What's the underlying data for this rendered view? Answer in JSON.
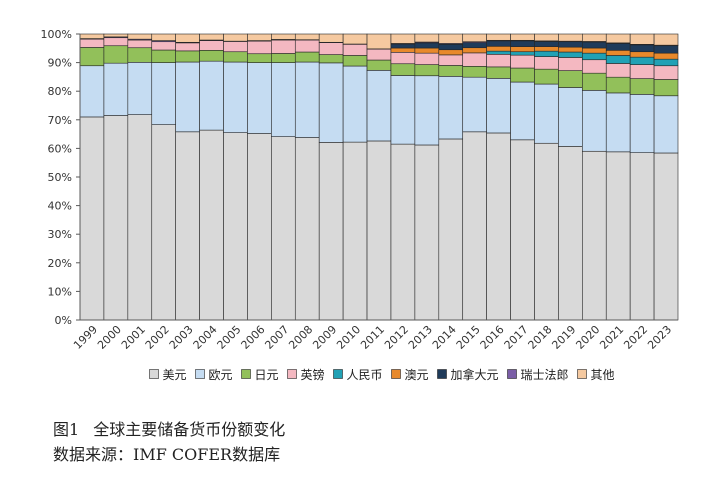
{
  "chart_data": {
    "type": "bar",
    "stacked": true,
    "normalized": true,
    "categories": [
      "1999",
      "2000",
      "2001",
      "2002",
      "2003",
      "2004",
      "2005",
      "2006",
      "2007",
      "2008",
      "2009",
      "2010",
      "2011",
      "2012",
      "2013",
      "2014",
      "2015",
      "2016",
      "2017",
      "2018",
      "2019",
      "2020",
      "2021",
      "2022",
      "2023"
    ],
    "ylim": [
      0,
      100
    ],
    "yticks": [
      "0%",
      "10%",
      "20%",
      "30%",
      "40%",
      "50%",
      "60%",
      "70%",
      "80%",
      "90%",
      "100%"
    ],
    "grid": false,
    "legend_position": "bottom",
    "series": [
      {
        "name": "美元",
        "color": "#d9d9d9",
        "values": [
          71.0,
          71.5,
          71.8,
          68.3,
          65.8,
          66.4,
          65.5,
          65.2,
          64.1,
          63.8,
          62.1,
          62.2,
          62.6,
          61.5,
          61.2,
          63.3,
          65.8,
          65.4,
          63.0,
          61.8,
          60.7,
          59.0,
          58.8,
          58.5,
          58.4
        ]
      },
      {
        "name": "欧元",
        "color": "#c5dcf2",
        "values": [
          17.9,
          18.3,
          18.3,
          21.7,
          24.4,
          24.1,
          24.7,
          24.8,
          25.9,
          26.4,
          27.8,
          26.6,
          24.7,
          24.0,
          24.2,
          21.9,
          19.1,
          19.1,
          20.2,
          20.7,
          20.6,
          21.3,
          20.6,
          20.4,
          20.0
        ]
      },
      {
        "name": "日元",
        "color": "#92c05a",
        "values": [
          6.4,
          6.1,
          5.1,
          4.4,
          3.9,
          3.8,
          3.6,
          3.1,
          3.2,
          3.5,
          2.9,
          3.7,
          3.6,
          4.1,
          3.9,
          3.8,
          3.8,
          4.0,
          4.9,
          5.2,
          5.9,
          6.0,
          5.5,
          5.5,
          5.7
        ]
      },
      {
        "name": "英镑",
        "color": "#f4b8c1",
        "values": [
          2.9,
          2.8,
          2.7,
          2.9,
          2.8,
          3.4,
          3.6,
          4.4,
          4.7,
          4.2,
          4.2,
          3.9,
          3.8,
          4.0,
          4.0,
          3.7,
          4.7,
          4.4,
          4.5,
          4.4,
          4.6,
          4.7,
          4.8,
          4.9,
          4.8
        ]
      },
      {
        "name": "人民币",
        "color": "#21a1b5",
        "values": [
          0,
          0,
          0,
          0,
          0,
          0,
          0,
          0,
          0,
          0,
          0,
          0,
          0,
          0,
          0,
          0,
          0,
          1.1,
          1.2,
          1.9,
          1.9,
          2.3,
          2.8,
          2.6,
          2.3
        ]
      },
      {
        "name": "澳元",
        "color": "#e8892b",
        "values": [
          0,
          0,
          0,
          0,
          0,
          0,
          0,
          0,
          0,
          0,
          0,
          0,
          0,
          1.5,
          1.8,
          1.8,
          1.8,
          1.7,
          1.8,
          1.6,
          1.7,
          1.8,
          1.8,
          1.9,
          2.1
        ]
      },
      {
        "name": "加拿大元",
        "color": "#1f3b5a",
        "values": [
          0,
          0,
          0,
          0,
          0,
          0,
          0,
          0,
          0,
          0,
          0,
          0,
          0,
          1.4,
          1.8,
          1.9,
          1.8,
          1.9,
          2.0,
          1.8,
          1.9,
          2.1,
          2.4,
          2.4,
          2.6
        ]
      },
      {
        "name": "瑞士法郎",
        "color": "#7b5ea7",
        "values": [
          0.2,
          0.3,
          0.3,
          0.4,
          0.2,
          0.2,
          0.1,
          0.2,
          0.2,
          0.1,
          0.1,
          0.1,
          0.1,
          0.2,
          0.3,
          0.3,
          0.3,
          0.2,
          0.2,
          0.2,
          0.2,
          0.2,
          0.2,
          0.2,
          0.2
        ]
      },
      {
        "name": "其他",
        "color": "#f5c9a0",
        "values": [
          1.6,
          1.0,
          1.8,
          2.3,
          2.9,
          2.1,
          2.5,
          2.3,
          1.9,
          2.0,
          2.9,
          3.5,
          5.2,
          3.3,
          2.8,
          3.3,
          2.7,
          2.2,
          2.2,
          2.4,
          2.5,
          2.6,
          3.1,
          3.6,
          3.9
        ]
      }
    ]
  },
  "caption": {
    "figure_no": "图1",
    "title": "全球主要储备货币份额变化",
    "source": "数据来源：IMF COFER数据库"
  }
}
